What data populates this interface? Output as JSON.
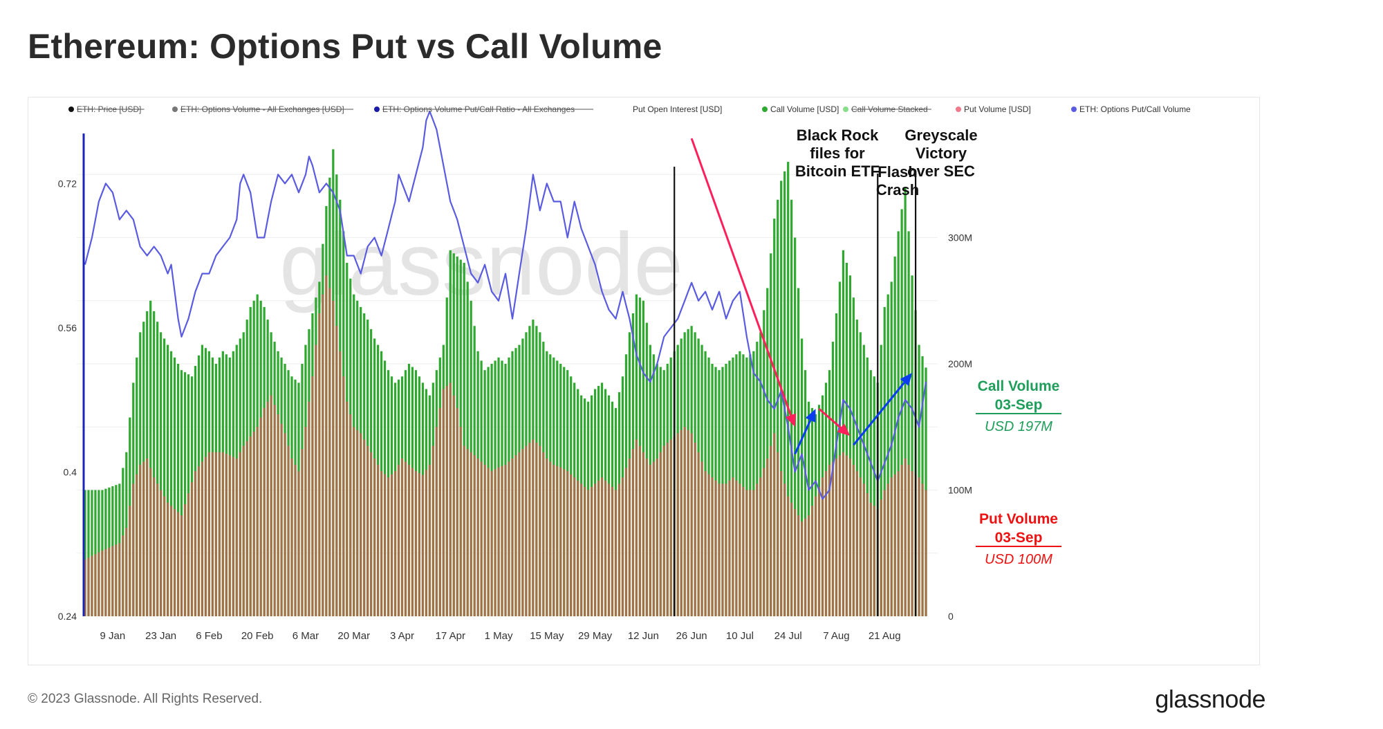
{
  "page": {
    "title": "Ethereum: Options Put vs Call Volume",
    "copyright": "© 2023 Glassnode. All Rights Reserved.",
    "logo": "glassnode",
    "watermark": "glassnode"
  },
  "colors": {
    "call": "#2ea82e",
    "put": "#b06a4a",
    "ratio": "#5a5be0",
    "left_axis": "#1a24b8",
    "event_line": "#111111",
    "arrow_red": "#ff1f5a",
    "arrow_blue": "#0b3df0",
    "call_label": "#1e9e5a",
    "put_label": "#ee1111"
  },
  "chart_data": {
    "type": "bar",
    "title": "Ethereum: Options Put vs Call Volume",
    "legend": [
      {
        "label": "ETH: Price [USD]",
        "color": "#111111",
        "disabled": true
      },
      {
        "label": "ETH: Options Volume - All Exchanges [USD]",
        "color": "#777777",
        "disabled": true
      },
      {
        "label": "ETH: Options Volume Put/Call Ratio - All Exchanges",
        "color": "#1a1aaa",
        "disabled": true
      },
      {
        "label": "Put Open Interest [USD]",
        "color": "",
        "disabled": false
      },
      {
        "label": "Call Volume [USD]",
        "color": "#2ea82e",
        "disabled": false
      },
      {
        "label": "Call Volume Stacked",
        "color": "#88dd88",
        "disabled": true
      },
      {
        "label": "Put Volume [USD]",
        "color": "#f07a8a",
        "disabled": false
      },
      {
        "label": "ETH: Options Put/Call Volume",
        "color": "#5a5be0",
        "disabled": false
      }
    ],
    "x_ticks": [
      "9 Jan",
      "23 Jan",
      "6 Feb",
      "20 Feb",
      "6 Mar",
      "20 Mar",
      "3 Apr",
      "17 Apr",
      "1 May",
      "15 May",
      "29 May",
      "12 Jun",
      "26 Jun",
      "10 Jul",
      "24 Jul",
      "7 Aug",
      "21 Aug"
    ],
    "x_tick_days": [
      8,
      22,
      36,
      50,
      64,
      78,
      92,
      106,
      120,
      134,
      148,
      162,
      176,
      190,
      204,
      218,
      232
    ],
    "x_range_days": [
      0,
      245
    ],
    "left_axis": {
      "ticks": [
        "0.24",
        "0.4",
        "0.56",
        "0.72"
      ],
      "values": [
        0.24,
        0.4,
        0.56,
        0.72
      ],
      "range": [
        0.24,
        0.8
      ]
    },
    "right_axis": {
      "ticks": [
        "0",
        "100M",
        "200M",
        "300M"
      ],
      "values": [
        0,
        100,
        200,
        300
      ],
      "range": [
        0,
        400
      ],
      "unit": "USD millions"
    },
    "call_keys": [
      [
        0,
        100
      ],
      [
        5,
        100
      ],
      [
        10,
        105
      ],
      [
        12,
        130
      ],
      [
        14,
        185
      ],
      [
        16,
        225
      ],
      [
        19,
        250
      ],
      [
        22,
        225
      ],
      [
        25,
        210
      ],
      [
        28,
        195
      ],
      [
        31,
        190
      ],
      [
        34,
        215
      ],
      [
        36,
        210
      ],
      [
        38,
        200
      ],
      [
        40,
        210
      ],
      [
        42,
        205
      ],
      [
        44,
        215
      ],
      [
        46,
        225
      ],
      [
        48,
        245
      ],
      [
        50,
        255
      ],
      [
        52,
        245
      ],
      [
        54,
        225
      ],
      [
        56,
        210
      ],
      [
        58,
        200
      ],
      [
        60,
        190
      ],
      [
        62,
        185
      ],
      [
        64,
        215
      ],
      [
        66,
        240
      ],
      [
        68,
        265
      ],
      [
        70,
        325
      ],
      [
        72,
        370
      ],
      [
        74,
        330
      ],
      [
        76,
        280
      ],
      [
        78,
        255
      ],
      [
        80,
        245
      ],
      [
        82,
        235
      ],
      [
        84,
        220
      ],
      [
        86,
        210
      ],
      [
        88,
        195
      ],
      [
        90,
        185
      ],
      [
        92,
        190
      ],
      [
        94,
        200
      ],
      [
        96,
        195
      ],
      [
        98,
        185
      ],
      [
        100,
        175
      ],
      [
        102,
        195
      ],
      [
        104,
        215
      ],
      [
        106,
        290
      ],
      [
        108,
        285
      ],
      [
        110,
        280
      ],
      [
        112,
        250
      ],
      [
        114,
        210
      ],
      [
        116,
        195
      ],
      [
        118,
        200
      ],
      [
        120,
        205
      ],
      [
        122,
        200
      ],
      [
        124,
        210
      ],
      [
        126,
        215
      ],
      [
        128,
        225
      ],
      [
        130,
        235
      ],
      [
        132,
        225
      ],
      [
        134,
        210
      ],
      [
        136,
        205
      ],
      [
        138,
        200
      ],
      [
        140,
        195
      ],
      [
        142,
        185
      ],
      [
        144,
        175
      ],
      [
        146,
        170
      ],
      [
        148,
        180
      ],
      [
        150,
        185
      ],
      [
        152,
        175
      ],
      [
        154,
        165
      ],
      [
        156,
        190
      ],
      [
        158,
        225
      ],
      [
        160,
        255
      ],
      [
        162,
        250
      ],
      [
        164,
        215
      ],
      [
        166,
        200
      ],
      [
        168,
        195
      ],
      [
        170,
        205
      ],
      [
        172,
        215
      ],
      [
        174,
        225
      ],
      [
        176,
        230
      ],
      [
        178,
        220
      ],
      [
        180,
        210
      ],
      [
        182,
        200
      ],
      [
        184,
        195
      ],
      [
        186,
        200
      ],
      [
        188,
        205
      ],
      [
        190,
        210
      ],
      [
        192,
        205
      ],
      [
        194,
        210
      ],
      [
        196,
        225
      ],
      [
        198,
        260
      ],
      [
        200,
        315
      ],
      [
        202,
        345
      ],
      [
        204,
        360
      ],
      [
        206,
        300
      ],
      [
        208,
        220
      ],
      [
        210,
        170
      ],
      [
        212,
        160
      ],
      [
        214,
        175
      ],
      [
        216,
        195
      ],
      [
        218,
        240
      ],
      [
        220,
        290
      ],
      [
        222,
        270
      ],
      [
        224,
        235
      ],
      [
        226,
        215
      ],
      [
        228,
        195
      ],
      [
        230,
        185
      ],
      [
        232,
        245
      ],
      [
        234,
        265
      ],
      [
        236,
        305
      ],
      [
        238,
        340
      ],
      [
        240,
        270
      ],
      [
        242,
        215
      ],
      [
        244,
        197
      ]
    ],
    "put_keys": [
      [
        0,
        45
      ],
      [
        5,
        52
      ],
      [
        10,
        58
      ],
      [
        12,
        70
      ],
      [
        14,
        105
      ],
      [
        16,
        120
      ],
      [
        18,
        125
      ],
      [
        20,
        110
      ],
      [
        24,
        90
      ],
      [
        28,
        80
      ],
      [
        32,
        115
      ],
      [
        36,
        130
      ],
      [
        40,
        130
      ],
      [
        44,
        125
      ],
      [
        46,
        135
      ],
      [
        50,
        150
      ],
      [
        52,
        165
      ],
      [
        54,
        175
      ],
      [
        56,
        160
      ],
      [
        58,
        145
      ],
      [
        60,
        125
      ],
      [
        62,
        115
      ],
      [
        64,
        150
      ],
      [
        66,
        190
      ],
      [
        68,
        240
      ],
      [
        70,
        270
      ],
      [
        72,
        250
      ],
      [
        74,
        210
      ],
      [
        76,
        170
      ],
      [
        78,
        150
      ],
      [
        80,
        145
      ],
      [
        82,
        135
      ],
      [
        84,
        125
      ],
      [
        86,
        115
      ],
      [
        88,
        110
      ],
      [
        90,
        115
      ],
      [
        92,
        125
      ],
      [
        94,
        120
      ],
      [
        96,
        115
      ],
      [
        98,
        112
      ],
      [
        100,
        120
      ],
      [
        102,
        150
      ],
      [
        104,
        180
      ],
      [
        106,
        185
      ],
      [
        108,
        165
      ],
      [
        110,
        135
      ],
      [
        112,
        130
      ],
      [
        114,
        125
      ],
      [
        116,
        120
      ],
      [
        118,
        115
      ],
      [
        120,
        118
      ],
      [
        122,
        120
      ],
      [
        124,
        125
      ],
      [
        126,
        130
      ],
      [
        128,
        135
      ],
      [
        130,
        140
      ],
      [
        132,
        135
      ],
      [
        134,
        125
      ],
      [
        136,
        120
      ],
      [
        138,
        118
      ],
      [
        140,
        115
      ],
      [
        142,
        110
      ],
      [
        144,
        105
      ],
      [
        146,
        100
      ],
      [
        148,
        105
      ],
      [
        150,
        110
      ],
      [
        152,
        105
      ],
      [
        154,
        100
      ],
      [
        156,
        110
      ],
      [
        158,
        125
      ],
      [
        160,
        140
      ],
      [
        162,
        130
      ],
      [
        164,
        120
      ],
      [
        166,
        125
      ],
      [
        168,
        135
      ],
      [
        170,
        140
      ],
      [
        172,
        145
      ],
      [
        174,
        150
      ],
      [
        176,
        145
      ],
      [
        178,
        130
      ],
      [
        180,
        115
      ],
      [
        182,
        110
      ],
      [
        184,
        105
      ],
      [
        186,
        105
      ],
      [
        188,
        110
      ],
      [
        190,
        105
      ],
      [
        192,
        100
      ],
      [
        194,
        100
      ],
      [
        196,
        110
      ],
      [
        198,
        125
      ],
      [
        200,
        145
      ],
      [
        202,
        115
      ],
      [
        204,
        95
      ],
      [
        206,
        85
      ],
      [
        208,
        75
      ],
      [
        210,
        80
      ],
      [
        212,
        95
      ],
      [
        214,
        110
      ],
      [
        216,
        120
      ],
      [
        218,
        125
      ],
      [
        220,
        130
      ],
      [
        222,
        125
      ],
      [
        224,
        115
      ],
      [
        226,
        105
      ],
      [
        228,
        90
      ],
      [
        230,
        85
      ],
      [
        232,
        100
      ],
      [
        234,
        110
      ],
      [
        236,
        115
      ],
      [
        238,
        125
      ],
      [
        240,
        115
      ],
      [
        242,
        110
      ],
      [
        244,
        100
      ]
    ],
    "ratio_keys": [
      [
        0,
        0.63
      ],
      [
        2,
        0.66
      ],
      [
        4,
        0.7
      ],
      [
        6,
        0.72
      ],
      [
        8,
        0.71
      ],
      [
        10,
        0.68
      ],
      [
        12,
        0.69
      ],
      [
        14,
        0.68
      ],
      [
        16,
        0.65
      ],
      [
        18,
        0.64
      ],
      [
        20,
        0.65
      ],
      [
        22,
        0.64
      ],
      [
        24,
        0.62
      ],
      [
        25,
        0.63
      ],
      [
        26,
        0.6
      ],
      [
        27,
        0.57
      ],
      [
        28,
        0.55
      ],
      [
        30,
        0.57
      ],
      [
        32,
        0.6
      ],
      [
        33,
        0.61
      ],
      [
        34,
        0.62
      ],
      [
        36,
        0.62
      ],
      [
        38,
        0.64
      ],
      [
        40,
        0.65
      ],
      [
        42,
        0.66
      ],
      [
        44,
        0.68
      ],
      [
        45,
        0.72
      ],
      [
        46,
        0.73
      ],
      [
        48,
        0.71
      ],
      [
        50,
        0.66
      ],
      [
        52,
        0.66
      ],
      [
        54,
        0.7
      ],
      [
        56,
        0.73
      ],
      [
        58,
        0.72
      ],
      [
        60,
        0.73
      ],
      [
        62,
        0.71
      ],
      [
        64,
        0.73
      ],
      [
        65,
        0.75
      ],
      [
        66,
        0.74
      ],
      [
        68,
        0.71
      ],
      [
        70,
        0.72
      ],
      [
        72,
        0.71
      ],
      [
        74,
        0.69
      ],
      [
        76,
        0.64
      ],
      [
        78,
        0.64
      ],
      [
        80,
        0.62
      ],
      [
        82,
        0.65
      ],
      [
        84,
        0.66
      ],
      [
        86,
        0.64
      ],
      [
        88,
        0.67
      ],
      [
        90,
        0.7
      ],
      [
        91,
        0.73
      ],
      [
        92,
        0.72
      ],
      [
        94,
        0.7
      ],
      [
        96,
        0.73
      ],
      [
        98,
        0.76
      ],
      [
        99,
        0.79
      ],
      [
        100,
        0.8
      ],
      [
        102,
        0.78
      ],
      [
        104,
        0.74
      ],
      [
        106,
        0.7
      ],
      [
        108,
        0.68
      ],
      [
        110,
        0.65
      ],
      [
        112,
        0.62
      ],
      [
        114,
        0.61
      ],
      [
        116,
        0.63
      ],
      [
        118,
        0.6
      ],
      [
        120,
        0.59
      ],
      [
        122,
        0.62
      ],
      [
        124,
        0.57
      ],
      [
        126,
        0.62
      ],
      [
        128,
        0.67
      ],
      [
        130,
        0.73
      ],
      [
        132,
        0.69
      ],
      [
        134,
        0.72
      ],
      [
        136,
        0.7
      ],
      [
        138,
        0.7
      ],
      [
        140,
        0.66
      ],
      [
        142,
        0.7
      ],
      [
        144,
        0.67
      ],
      [
        146,
        0.65
      ],
      [
        148,
        0.63
      ],
      [
        150,
        0.6
      ],
      [
        152,
        0.58
      ],
      [
        154,
        0.57
      ],
      [
        156,
        0.6
      ],
      [
        158,
        0.57
      ],
      [
        160,
        0.53
      ],
      [
        162,
        0.51
      ],
      [
        164,
        0.5
      ],
      [
        166,
        0.52
      ],
      [
        168,
        0.55
      ],
      [
        170,
        0.56
      ],
      [
        172,
        0.57
      ],
      [
        174,
        0.59
      ],
      [
        176,
        0.61
      ],
      [
        178,
        0.59
      ],
      [
        180,
        0.6
      ],
      [
        182,
        0.58
      ],
      [
        184,
        0.6
      ],
      [
        186,
        0.57
      ],
      [
        188,
        0.59
      ],
      [
        190,
        0.6
      ],
      [
        192,
        0.55
      ],
      [
        194,
        0.51
      ],
      [
        196,
        0.5
      ],
      [
        198,
        0.48
      ],
      [
        200,
        0.47
      ],
      [
        202,
        0.49
      ],
      [
        204,
        0.45
      ],
      [
        206,
        0.4
      ],
      [
        208,
        0.42
      ],
      [
        210,
        0.38
      ],
      [
        212,
        0.39
      ],
      [
        214,
        0.37
      ],
      [
        216,
        0.38
      ],
      [
        218,
        0.43
      ],
      [
        220,
        0.48
      ],
      [
        222,
        0.47
      ],
      [
        224,
        0.45
      ],
      [
        226,
        0.43
      ],
      [
        228,
        0.41
      ],
      [
        230,
        0.39
      ],
      [
        232,
        0.41
      ],
      [
        234,
        0.43
      ],
      [
        236,
        0.46
      ],
      [
        238,
        0.48
      ],
      [
        240,
        0.47
      ],
      [
        242,
        0.45
      ],
      [
        244,
        0.5
      ]
    ],
    "events": [
      {
        "label_lines": [
          "Black Rock",
          "files for",
          "Bitcoin ETF"
        ],
        "day": 171
      },
      {
        "label_lines": [
          "Flash",
          "Crash"
        ],
        "day": 230
      },
      {
        "label_lines": [
          "Greyscale",
          "Victory",
          "over SEC"
        ],
        "day": 241
      }
    ],
    "arrows": [
      {
        "color": "red",
        "from": [
          176,
          0.77
        ],
        "to": [
          206,
          0.45
        ]
      },
      {
        "color": "blue",
        "from": [
          206,
          0.42
        ],
        "to": [
          212,
          0.47
        ]
      },
      {
        "color": "red",
        "from": [
          213,
          0.47
        ],
        "to": [
          222,
          0.44
        ]
      },
      {
        "color": "blue",
        "from": [
          223,
          0.43
        ],
        "to": [
          240,
          0.51
        ]
      }
    ],
    "callouts": {
      "call": {
        "title": "Call Volume",
        "date": "03-Sep",
        "value": "USD 197M"
      },
      "put": {
        "title": "Put Volume",
        "date": "03-Sep",
        "value": "USD 100M"
      }
    }
  }
}
